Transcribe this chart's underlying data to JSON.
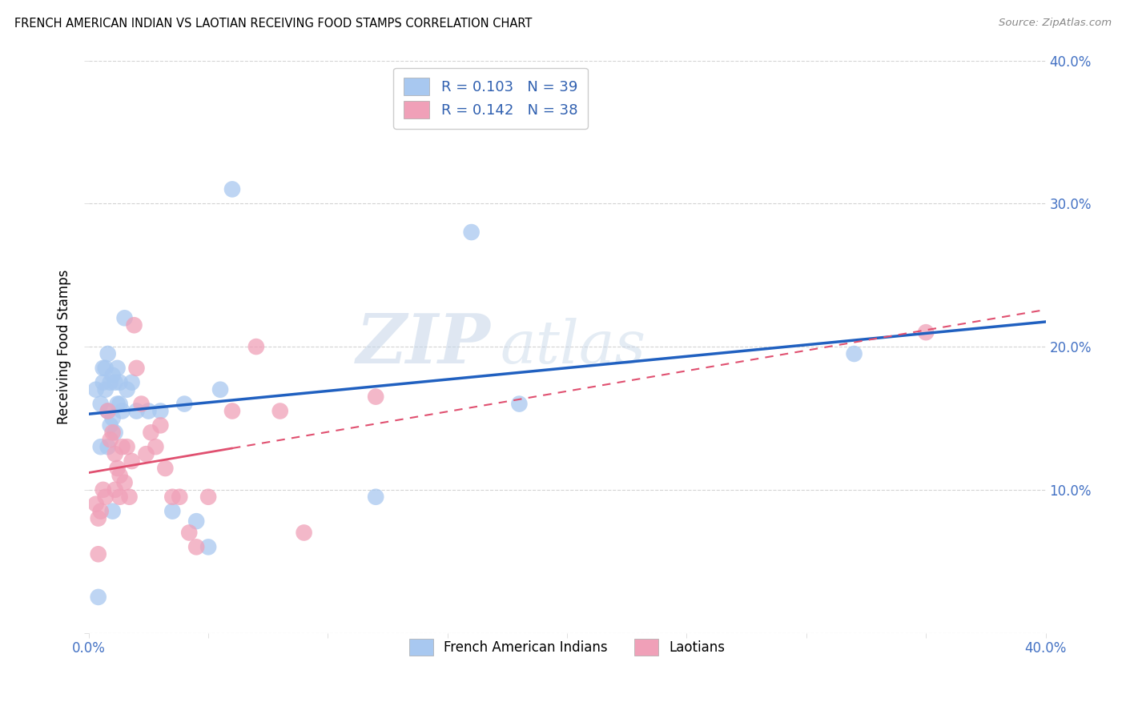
{
  "title": "FRENCH AMERICAN INDIAN VS LAOTIAN RECEIVING FOOD STAMPS CORRELATION CHART",
  "source": "Source: ZipAtlas.com",
  "ylabel_label": "Receiving Food Stamps",
  "xlim": [
    0.0,
    0.4
  ],
  "ylim": [
    0.0,
    0.4
  ],
  "xticks": [
    0.0,
    0.05,
    0.1,
    0.15,
    0.2,
    0.25,
    0.3,
    0.35,
    0.4
  ],
  "yticks": [
    0.0,
    0.1,
    0.2,
    0.3,
    0.4
  ],
  "color_blue": "#A8C8F0",
  "color_pink": "#F0A0B8",
  "line_color_blue": "#2060C0",
  "line_color_pink": "#E05070",
  "legend_label1": "French American Indians",
  "legend_label2": "Laotians",
  "watermark_zip": "ZIP",
  "watermark_atlas": "atlas",
  "blue_x": [
    0.003,
    0.004,
    0.005,
    0.006,
    0.006,
    0.007,
    0.007,
    0.008,
    0.008,
    0.009,
    0.009,
    0.01,
    0.01,
    0.011,
    0.011,
    0.012,
    0.012,
    0.013,
    0.013,
    0.014,
    0.015,
    0.016,
    0.018,
    0.02,
    0.025,
    0.03,
    0.035,
    0.04,
    0.045,
    0.05,
    0.055,
    0.06,
    0.12,
    0.16,
    0.18,
    0.32,
    0.005,
    0.008,
    0.01
  ],
  "blue_y": [
    0.17,
    0.025,
    0.16,
    0.185,
    0.175,
    0.185,
    0.17,
    0.155,
    0.195,
    0.145,
    0.175,
    0.15,
    0.18,
    0.14,
    0.175,
    0.16,
    0.185,
    0.16,
    0.175,
    0.155,
    0.22,
    0.17,
    0.175,
    0.155,
    0.155,
    0.155,
    0.085,
    0.16,
    0.078,
    0.06,
    0.17,
    0.31,
    0.095,
    0.28,
    0.16,
    0.195,
    0.13,
    0.13,
    0.085
  ],
  "pink_x": [
    0.003,
    0.004,
    0.004,
    0.005,
    0.006,
    0.007,
    0.008,
    0.009,
    0.01,
    0.011,
    0.011,
    0.012,
    0.013,
    0.013,
    0.014,
    0.015,
    0.016,
    0.017,
    0.018,
    0.019,
    0.02,
    0.022,
    0.024,
    0.026,
    0.028,
    0.03,
    0.032,
    0.035,
    0.038,
    0.042,
    0.045,
    0.05,
    0.06,
    0.07,
    0.08,
    0.09,
    0.12,
    0.35
  ],
  "pink_y": [
    0.09,
    0.08,
    0.055,
    0.085,
    0.1,
    0.095,
    0.155,
    0.135,
    0.14,
    0.125,
    0.1,
    0.115,
    0.095,
    0.11,
    0.13,
    0.105,
    0.13,
    0.095,
    0.12,
    0.215,
    0.185,
    0.16,
    0.125,
    0.14,
    0.13,
    0.145,
    0.115,
    0.095,
    0.095,
    0.07,
    0.06,
    0.095,
    0.155,
    0.2,
    0.155,
    0.07,
    0.165,
    0.21
  ]
}
